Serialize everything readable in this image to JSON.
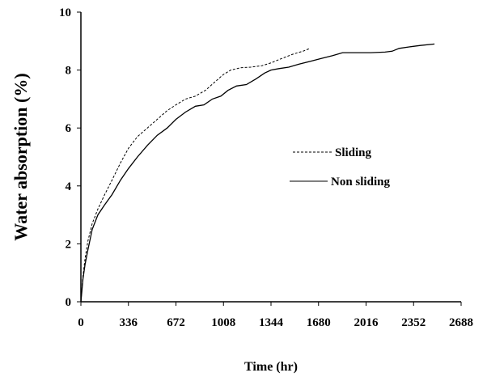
{
  "chart_data": {
    "type": "line",
    "xlabel": "Time (hr)",
    "ylabel": "Water absorption (%)",
    "xlim": [
      0,
      2688
    ],
    "ylim": [
      0,
      10
    ],
    "x_ticks": [
      "0",
      "336",
      "672",
      "1008",
      "1344",
      "1680",
      "2016",
      "2352",
      "2688"
    ],
    "y_ticks": [
      "0",
      "2",
      "4",
      "6",
      "8",
      "10"
    ],
    "grid": false,
    "legend_position": "right-middle",
    "series": [
      {
        "name": "Sliding",
        "style": "dashed",
        "color": "#000000",
        "points": [
          [
            0,
            0
          ],
          [
            15,
            0.9
          ],
          [
            30,
            1.5
          ],
          [
            50,
            2.1
          ],
          [
            80,
            2.7
          ],
          [
            120,
            3.2
          ],
          [
            168,
            3.7
          ],
          [
            220,
            4.2
          ],
          [
            280,
            4.8
          ],
          [
            336,
            5.3
          ],
          [
            400,
            5.7
          ],
          [
            470,
            6.0
          ],
          [
            540,
            6.3
          ],
          [
            610,
            6.6
          ],
          [
            672,
            6.8
          ],
          [
            740,
            7.0
          ],
          [
            810,
            7.1
          ],
          [
            880,
            7.3
          ],
          [
            950,
            7.6
          ],
          [
            1008,
            7.85
          ],
          [
            1060,
            8.0
          ],
          [
            1130,
            8.08
          ],
          [
            1200,
            8.1
          ],
          [
            1280,
            8.15
          ],
          [
            1344,
            8.25
          ],
          [
            1420,
            8.4
          ],
          [
            1500,
            8.55
          ],
          [
            1570,
            8.65
          ],
          [
            1620,
            8.75
          ]
        ]
      },
      {
        "name": "Non sliding",
        "style": "solid",
        "color": "#000000",
        "points": [
          [
            0,
            0
          ],
          [
            15,
            0.8
          ],
          [
            30,
            1.3
          ],
          [
            50,
            1.8
          ],
          [
            80,
            2.5
          ],
          [
            120,
            3.0
          ],
          [
            168,
            3.35
          ],
          [
            220,
            3.7
          ],
          [
            280,
            4.2
          ],
          [
            336,
            4.6
          ],
          [
            400,
            5.0
          ],
          [
            470,
            5.4
          ],
          [
            540,
            5.75
          ],
          [
            610,
            6.0
          ],
          [
            672,
            6.3
          ],
          [
            740,
            6.55
          ],
          [
            810,
            6.75
          ],
          [
            870,
            6.8
          ],
          [
            930,
            7.0
          ],
          [
            990,
            7.1
          ],
          [
            1040,
            7.3
          ],
          [
            1100,
            7.45
          ],
          [
            1170,
            7.5
          ],
          [
            1240,
            7.7
          ],
          [
            1300,
            7.9
          ],
          [
            1344,
            8.0
          ],
          [
            1400,
            8.05
          ],
          [
            1470,
            8.1
          ],
          [
            1540,
            8.2
          ],
          [
            1620,
            8.3
          ],
          [
            1700,
            8.4
          ],
          [
            1780,
            8.5
          ],
          [
            1850,
            8.6
          ],
          [
            1950,
            8.6
          ],
          [
            2050,
            8.6
          ],
          [
            2150,
            8.62
          ],
          [
            2200,
            8.65
          ],
          [
            2250,
            8.75
          ],
          [
            2320,
            8.8
          ],
          [
            2400,
            8.85
          ],
          [
            2500,
            8.9
          ]
        ]
      }
    ]
  }
}
